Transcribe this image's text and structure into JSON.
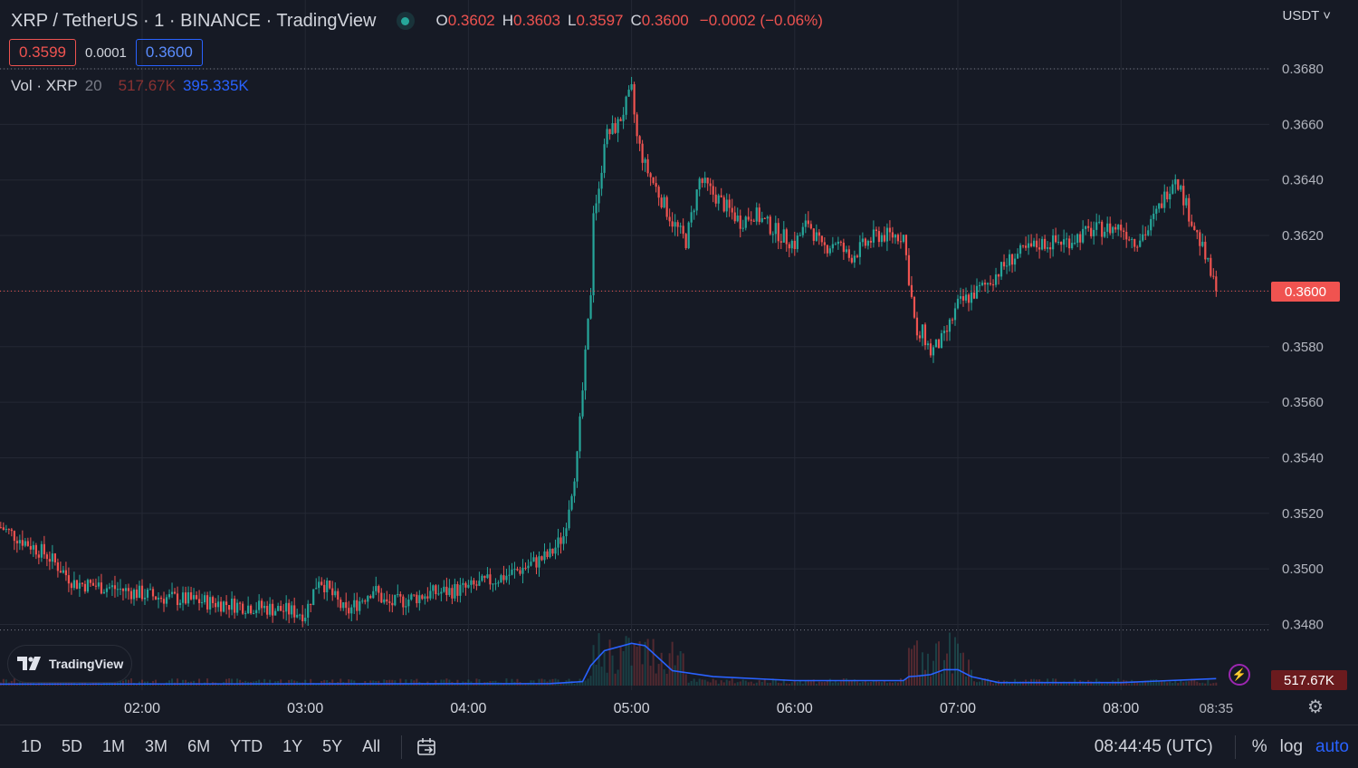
{
  "header": {
    "title": "XRP / TetherUS · 1 · BINANCE · TradingView",
    "ohlc": [
      {
        "key": "O",
        "value": "0.3602"
      },
      {
        "key": "H",
        "value": "0.3603"
      },
      {
        "key": "L",
        "value": "0.3597"
      },
      {
        "key": "C",
        "value": "0.3600"
      }
    ],
    "change": "−0.0002 (−0.06%)"
  },
  "quote": {
    "sell": "0.3599",
    "spread": "0.0001",
    "buy": "0.3600"
  },
  "volume_legend": {
    "label": "Vol · XRP",
    "length": "20",
    "value": "517.67K",
    "ma_value": "395.335K"
  },
  "currency": "USDT",
  "price_tag": "0.3600",
  "volume_tag": "517.67K",
  "badge": {
    "text": "TradingView",
    "icon": "tradingview-logo-icon"
  },
  "ranges": [
    "1D",
    "5D",
    "1M",
    "3M",
    "6M",
    "YTD",
    "1Y",
    "5Y",
    "All"
  ],
  "clock": "08:44:45 (UTC)",
  "scale_buttons": {
    "percent": "%",
    "log": "log",
    "auto": "auto"
  },
  "colors": {
    "up": "#26a69a",
    "down": "#ef5350",
    "volume_ma": "#2962ff",
    "background": "#161a25"
  },
  "chart_data": {
    "type": "candlestick",
    "y_ticks": [
      "0.3680",
      "0.3660",
      "0.3640",
      "0.3620",
      "0.3600",
      "0.3580",
      "0.3560",
      "0.3540",
      "0.3520",
      "0.3500",
      "0.3480"
    ],
    "x_ticks": [
      "02:00",
      "03:00",
      "04:00",
      "05:00",
      "06:00",
      "07:00",
      "08:00"
    ],
    "x_last_label": "08:35",
    "ylim": [
      0.3478,
      0.3682
    ],
    "high_line": 0.368,
    "low_line": 0.3478,
    "last_price": 0.36,
    "path_times": [
      "01:08",
      "01:25",
      "01:35",
      "01:50",
      "02:05",
      "02:25",
      "02:45",
      "03:00",
      "03:05",
      "03:15",
      "03:25",
      "03:30",
      "03:45",
      "04:00",
      "04:15",
      "04:30",
      "04:35",
      "04:40",
      "04:45",
      "04:46",
      "04:48",
      "04:50",
      "04:55",
      "05:00",
      "05:02",
      "05:05",
      "05:10",
      "05:15",
      "05:20",
      "05:25",
      "05:30",
      "05:40",
      "05:45",
      "05:55",
      "06:00",
      "06:05",
      "06:10",
      "06:15",
      "06:20",
      "06:30",
      "06:40",
      "06:45",
      "06:47",
      "06:50",
      "06:55",
      "07:00",
      "07:10",
      "07:20",
      "07:30",
      "07:40",
      "07:50",
      "08:00",
      "08:05",
      "08:10",
      "08:15",
      "08:20",
      "08:25",
      "08:30",
      "08:35"
    ],
    "path_prices": [
      0.3515,
      0.3505,
      0.3495,
      0.3493,
      0.349,
      0.3488,
      0.3486,
      0.3484,
      0.3497,
      0.3484,
      0.3493,
      0.3487,
      0.3491,
      0.3493,
      0.3498,
      0.3505,
      0.3512,
      0.354,
      0.36,
      0.363,
      0.3635,
      0.3655,
      0.366,
      0.3672,
      0.3655,
      0.3645,
      0.3635,
      0.3625,
      0.3618,
      0.364,
      0.3635,
      0.3625,
      0.3628,
      0.362,
      0.3617,
      0.3625,
      0.3615,
      0.3618,
      0.3612,
      0.362,
      0.362,
      0.3582,
      0.3585,
      0.3578,
      0.3583,
      0.3595,
      0.3602,
      0.3612,
      0.3617,
      0.3618,
      0.3622,
      0.3623,
      0.3618,
      0.3622,
      0.3632,
      0.3642,
      0.3628,
      0.3615,
      0.36
    ],
    "volume_ma_times": [
      "01:00",
      "04:30",
      "04:42",
      "04:45",
      "04:50",
      "05:00",
      "05:05",
      "05:15",
      "05:30",
      "06:00",
      "06:40",
      "06:42",
      "06:45",
      "06:50",
      "06:55",
      "07:00",
      "07:05",
      "07:15",
      "08:00",
      "08:35"
    ],
    "volume_ma_values": [
      3,
      4,
      8,
      40,
      70,
      85,
      80,
      30,
      18,
      10,
      10,
      18,
      19,
      22,
      32,
      32,
      18,
      6,
      6,
      14
    ]
  }
}
